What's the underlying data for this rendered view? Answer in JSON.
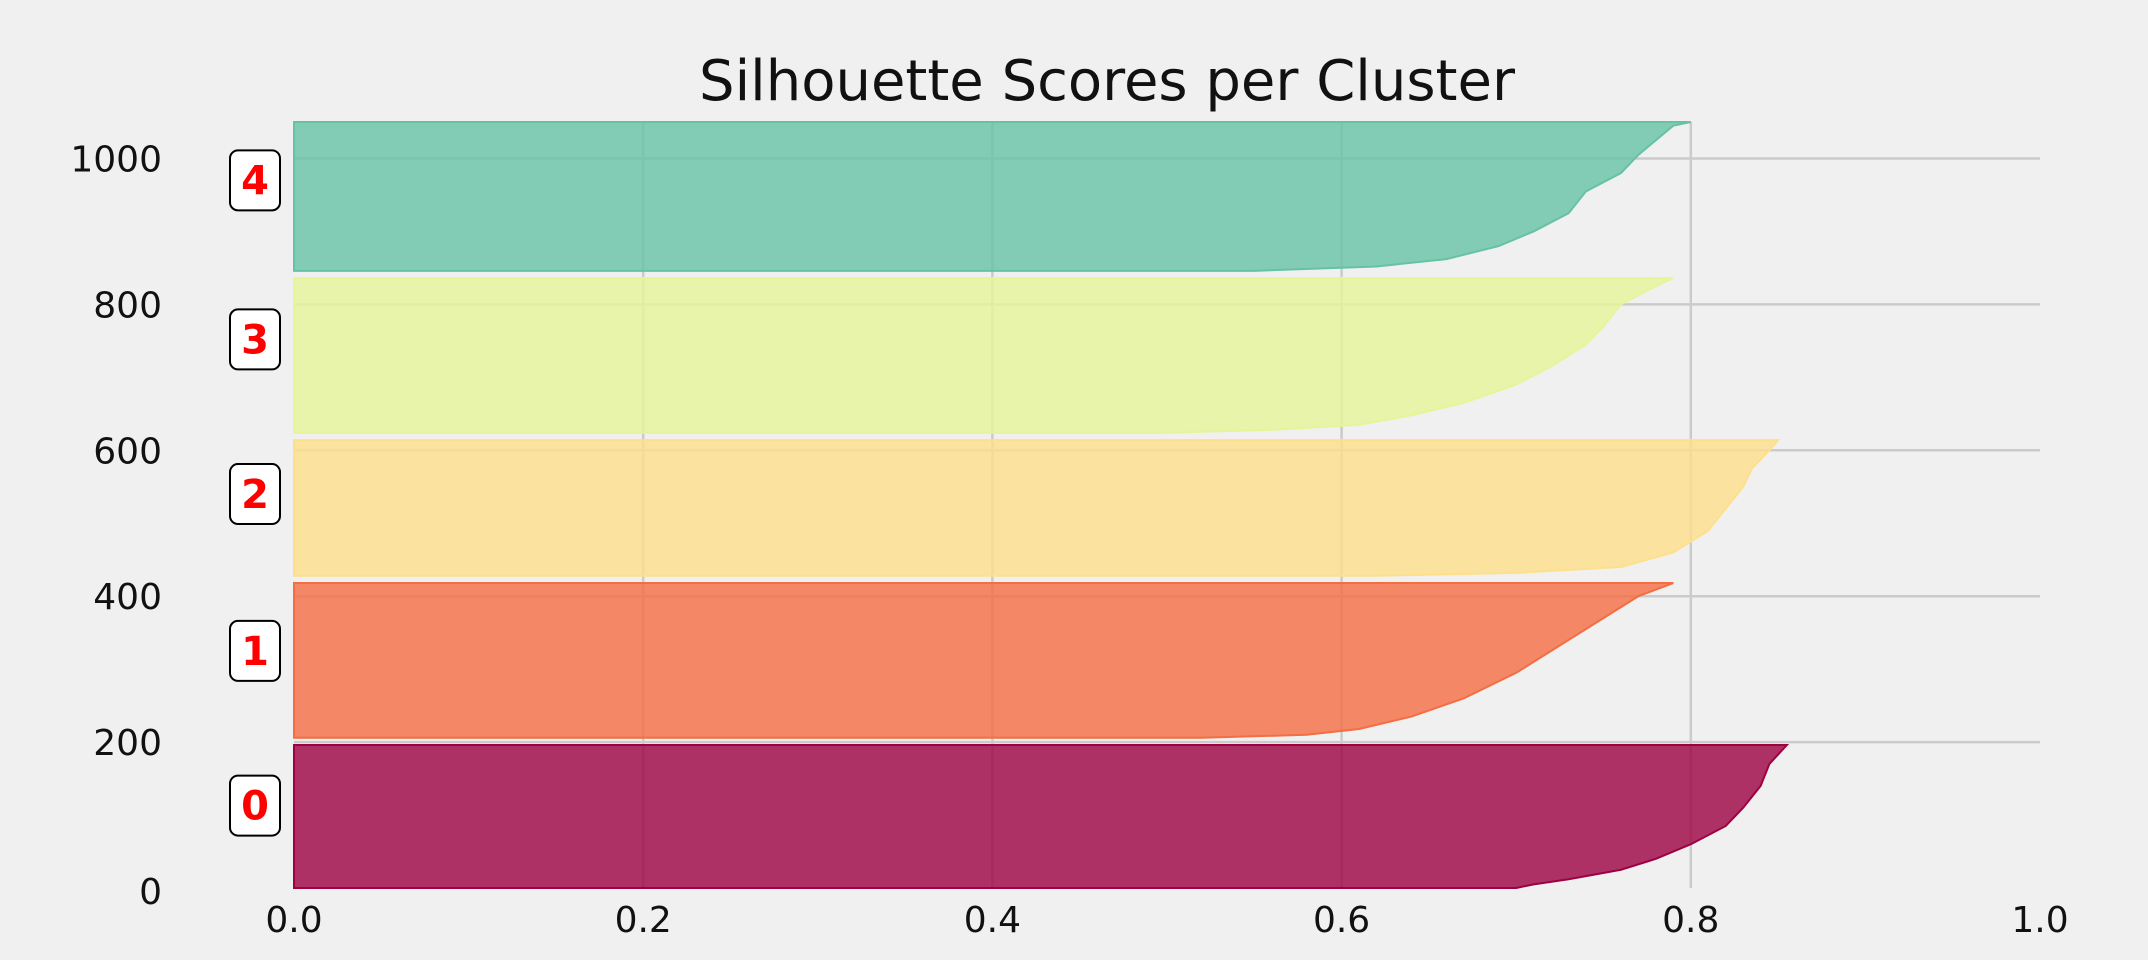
{
  "chart_data": {
    "type": "area",
    "title": "Silhouette Scores per Cluster",
    "xlabel": "",
    "ylabel": "",
    "xlim": [
      0.0,
      1.0
    ],
    "ylim": [
      0,
      1050
    ],
    "x_ticks": [
      "0.0",
      "0.2",
      "0.4",
      "0.6",
      "0.8",
      "1.0"
    ],
    "x_tick_values": [
      0.0,
      0.2,
      0.4,
      0.6,
      0.8,
      1.0
    ],
    "y_ticks": [
      "0",
      "200",
      "400",
      "600",
      "800",
      "1000"
    ],
    "y_tick_values": [
      0,
      200,
      400,
      600,
      800,
      1000
    ],
    "grid": true,
    "series": [
      {
        "label": "0",
        "color": "#9e0142",
        "y_lower": 0,
        "y_upper": 196,
        "points": [
          [
            0.0,
            0
          ],
          [
            0.7,
            0
          ],
          [
            0.71,
            5
          ],
          [
            0.73,
            12
          ],
          [
            0.76,
            25
          ],
          [
            0.78,
            40
          ],
          [
            0.8,
            60
          ],
          [
            0.82,
            85
          ],
          [
            0.83,
            110
          ],
          [
            0.84,
            140
          ],
          [
            0.845,
            170
          ],
          [
            0.855,
            196
          ]
        ]
      },
      {
        "label": "1",
        "color": "#f46d43",
        "y_lower": 206,
        "y_upper": 418,
        "points": [
          [
            0.0,
            206
          ],
          [
            0.52,
            206
          ],
          [
            0.58,
            210
          ],
          [
            0.61,
            218
          ],
          [
            0.64,
            235
          ],
          [
            0.67,
            260
          ],
          [
            0.7,
            295
          ],
          [
            0.72,
            325
          ],
          [
            0.74,
            355
          ],
          [
            0.76,
            385
          ],
          [
            0.77,
            400
          ],
          [
            0.79,
            418
          ]
        ]
      },
      {
        "label": "2",
        "color": "#fee08b",
        "y_lower": 428,
        "y_upper": 614,
        "points": [
          [
            0.0,
            428
          ],
          [
            0.62,
            428
          ],
          [
            0.7,
            432
          ],
          [
            0.76,
            440
          ],
          [
            0.79,
            460
          ],
          [
            0.81,
            490
          ],
          [
            0.82,
            520
          ],
          [
            0.83,
            550
          ],
          [
            0.835,
            575
          ],
          [
            0.845,
            600
          ],
          [
            0.85,
            614
          ]
        ]
      },
      {
        "label": "3",
        "color": "#e6f598",
        "y_lower": 624,
        "y_upper": 836,
        "points": [
          [
            0.0,
            624
          ],
          [
            0.5,
            624
          ],
          [
            0.56,
            628
          ],
          [
            0.61,
            635
          ],
          [
            0.64,
            648
          ],
          [
            0.67,
            665
          ],
          [
            0.7,
            690
          ],
          [
            0.72,
            715
          ],
          [
            0.74,
            745
          ],
          [
            0.75,
            770
          ],
          [
            0.76,
            800
          ],
          [
            0.78,
            825
          ],
          [
            0.79,
            836
          ]
        ]
      },
      {
        "label": "4",
        "color": "#66c2a5",
        "y_lower": 846,
        "y_upper": 1050,
        "points": [
          [
            0.0,
            846
          ],
          [
            0.55,
            846
          ],
          [
            0.62,
            852
          ],
          [
            0.66,
            862
          ],
          [
            0.69,
            880
          ],
          [
            0.71,
            900
          ],
          [
            0.73,
            925
          ],
          [
            0.74,
            955
          ],
          [
            0.76,
            980
          ],
          [
            0.77,
            1005
          ],
          [
            0.78,
            1025
          ],
          [
            0.79,
            1045
          ],
          [
            0.8,
            1050
          ]
        ]
      }
    ],
    "cluster_labels": [
      {
        "text": "0",
        "y": 113
      },
      {
        "text": "1",
        "y": 325
      },
      {
        "text": "2",
        "y": 540
      },
      {
        "text": "3",
        "y": 752
      },
      {
        "text": "4",
        "y": 970
      }
    ]
  }
}
